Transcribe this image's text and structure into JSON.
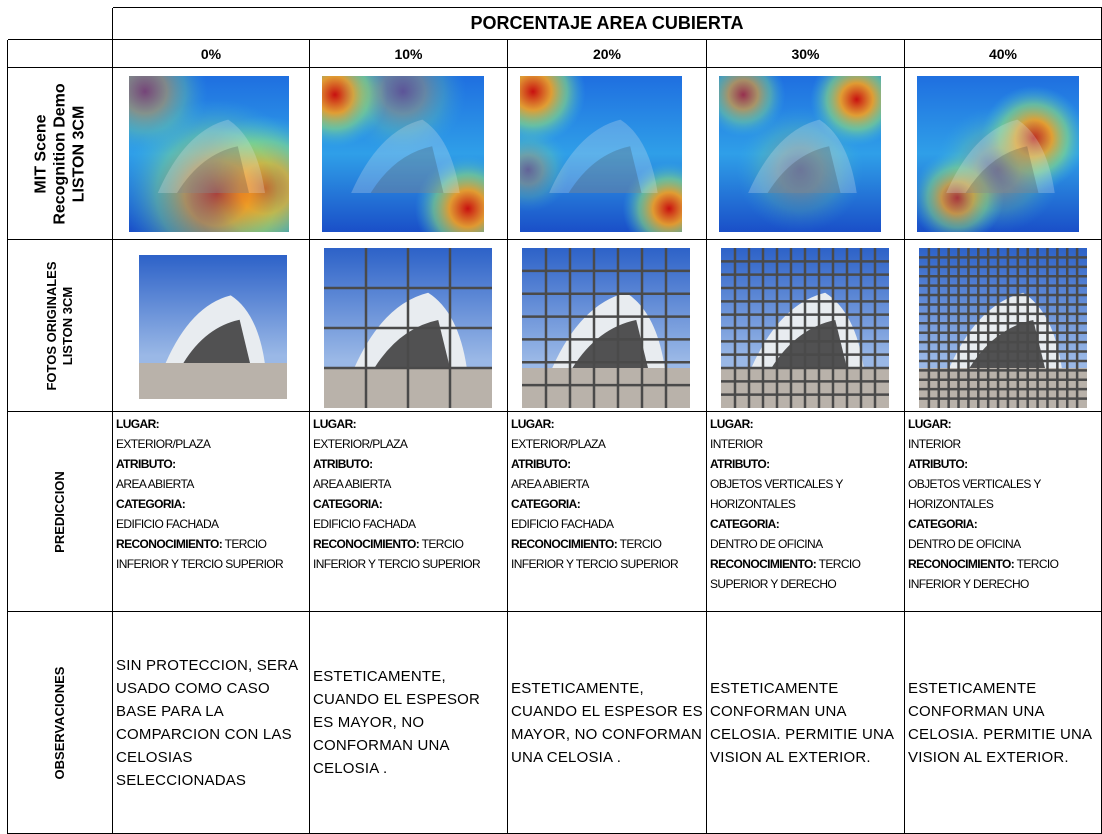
{
  "header": {
    "title": "PORCENTAJE AREA CUBIERTA",
    "columns": [
      "0%",
      "10%",
      "20%",
      "30%",
      "40%"
    ]
  },
  "rows": [
    {
      "label": "MIT Scene Recognition Demo LISTON 3CM"
    },
    {
      "label": "FOTOS ORIGINALES LISTON 3CM"
    },
    {
      "label": "PREDICCION",
      "cells": [
        {
          "lugar_label": "LUGAR:",
          "lugar": "EXTERIOR/PLAZA",
          "atributo_label": "ATRIBUTO:",
          "atributo": "AREA ABIERTA",
          "categoria_label": "CATEGORIA:",
          "categoria": "EDIFICIO FACHADA",
          "reconocimiento_label": "RECONOCIMIENTO:",
          "reconocimiento": "TERCIO INFERIOR Y TERCIO SUPERIOR"
        },
        {
          "lugar_label": "LUGAR:",
          "lugar": "EXTERIOR/PLAZA",
          "atributo_label": "ATRIBUTO:",
          "atributo": "AREA ABIERTA",
          "categoria_label": "CATEGORIA:",
          "categoria": "EDIFICIO FACHADA",
          "reconocimiento_label": "RECONOCIMIENTO:",
          "reconocimiento": "TERCIO INFERIOR Y TERCIO SUPERIOR"
        },
        {
          "lugar_label": "LUGAR:",
          "lugar": "EXTERIOR/PLAZA",
          "atributo_label": "ATRIBUTO:",
          "atributo": "AREA ABIERTA",
          "categoria_label": "CATEGORIA:",
          "categoria": "EDIFICIO FACHADA",
          "reconocimiento_label": "RECONOCIMIENTO:",
          "reconocimiento": "TERCIO INFERIOR Y TERCIO SUPERIOR"
        },
        {
          "lugar_label": "LUGAR:",
          "lugar": "INTERIOR",
          "atributo_label": "ATRIBUTO:",
          "atributo": "OBJETOS VERTICALES Y HORIZONTALES",
          "categoria_label": "CATEGORIA:",
          "categoria": "DENTRO DE OFICINA",
          "reconocimiento_label": "RECONOCIMIENTO:",
          "reconocimiento": "TERCIO SUPERIOR Y DERECHO"
        },
        {
          "lugar_label": "LUGAR:",
          "lugar": "INTERIOR",
          "atributo_label": "ATRIBUTO:",
          "atributo": "OBJETOS VERTICALES Y HORIZONTALES",
          "categoria_label": "CATEGORIA:",
          "categoria": "DENTRO DE OFICINA",
          "reconocimiento_label": "RECONOCIMIENTO:",
          "reconocimiento": "TERCIO INFERIOR Y DERECHO"
        }
      ]
    },
    {
      "label": "OBSERVACIONES",
      "cells": [
        "SIN PROTECCION, SERA USADO COMO CASO BASE PARA LA COMPARCION  CON LAS CELOSIAS SELECCIONADAS",
        "ESTETICAMENTE, CUANDO EL ESPESOR ES MAYOR,  NO CONFORMAN UNA CELOSIA .",
        "ESTETICAMENTE, CUANDO EL ESPESOR ES MAYOR, NO CONFORMAN UNA CELOSIA .",
        "ESTETICAMENTE CONFORMAN UNA CELOSIA.   PERMITIE UNA VISION AL EXTERIOR.",
        "ESTETICAMENTE CONFORMAN UNA CELOSIA.   PERMITIE UNA VISION AL EXTERIOR."
      ]
    }
  ]
}
